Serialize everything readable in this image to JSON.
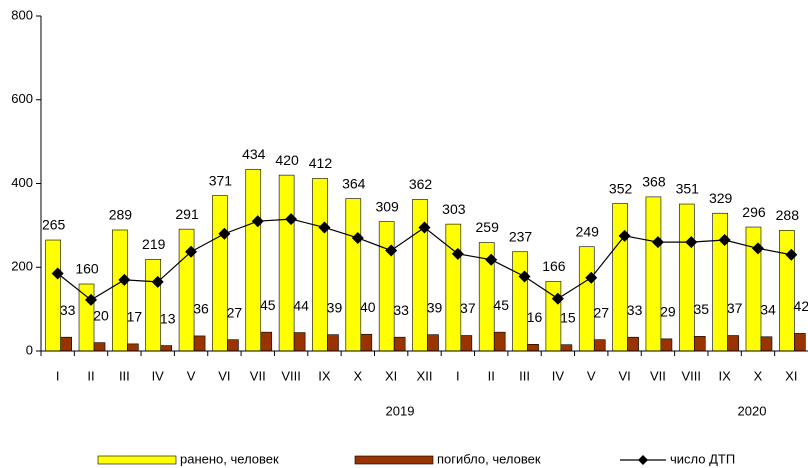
{
  "chart_data": {
    "type": "bar",
    "categories": [
      "I",
      "II",
      "III",
      "IV",
      "V",
      "VI",
      "VII",
      "VIII",
      "IX",
      "X",
      "XI",
      "XII",
      "I",
      "II",
      "III",
      "IV",
      "V",
      "VI",
      "VII",
      "VIII",
      "IX",
      "X",
      "XI"
    ],
    "group_labels": [
      "2019",
      "2020"
    ],
    "series": [
      {
        "name": "ранено, человек",
        "color": "#ffff00",
        "type": "bar",
        "values": [
          265,
          160,
          289,
          219,
          291,
          371,
          434,
          420,
          412,
          364,
          309,
          362,
          303,
          259,
          237,
          166,
          249,
          352,
          368,
          351,
          329,
          296,
          288
        ]
      },
      {
        "name": "погибло, человек",
        "color": "#993300",
        "type": "bar",
        "values": [
          33,
          20,
          17,
          13,
          36,
          27,
          45,
          44,
          39,
          40,
          33,
          39,
          37,
          45,
          16,
          15,
          27,
          33,
          29,
          35,
          37,
          34,
          42
        ]
      },
      {
        "name": "число ДТП",
        "color": "#000000",
        "type": "line",
        "values": [
          185,
          122,
          170,
          165,
          237,
          280,
          310,
          315,
          295,
          270,
          240,
          295,
          232,
          218,
          178,
          125,
          175,
          275,
          260,
          260,
          265,
          245,
          230
        ]
      }
    ],
    "ylim": [
      0,
      800
    ],
    "yticks": [
      0,
      200,
      400,
      600,
      800
    ],
    "grid": false
  }
}
